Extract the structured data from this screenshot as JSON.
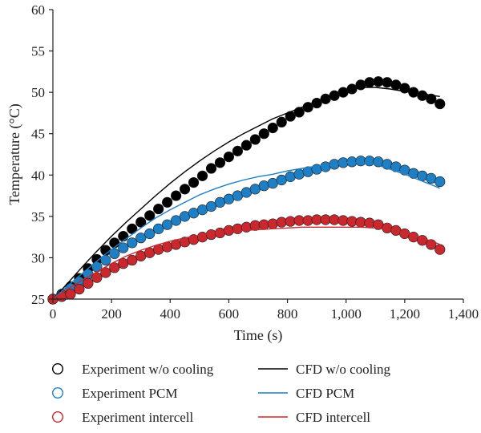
{
  "chart_data": {
    "type": "scatter",
    "title": "",
    "xlabel": "Time (s)",
    "ylabel": "Temperature (°C)",
    "xlim": [
      0,
      1400
    ],
    "ylim": [
      25,
      60
    ],
    "xticks": [
      0,
      200,
      400,
      600,
      800,
      1000,
      1200,
      1400
    ],
    "xtick_labels": [
      "0",
      "200",
      "400",
      "600",
      "800",
      "1,000",
      "1,200",
      "1,400"
    ],
    "yticks": [
      25,
      30,
      35,
      40,
      45,
      50,
      55,
      60
    ],
    "ytick_labels": [
      "25",
      "30",
      "35",
      "40",
      "45",
      "50",
      "55",
      "60"
    ],
    "grid": false,
    "legend_position": "bottom",
    "series": [
      {
        "name": "Experiment w/o cooling",
        "kind": "markers",
        "color": "#000000",
        "x": [
          0,
          30,
          60,
          90,
          120,
          150,
          180,
          210,
          240,
          270,
          300,
          330,
          360,
          390,
          420,
          450,
          480,
          510,
          540,
          570,
          600,
          630,
          660,
          690,
          720,
          750,
          780,
          810,
          840,
          870,
          900,
          930,
          960,
          990,
          1020,
          1050,
          1080,
          1110,
          1140,
          1170,
          1200,
          1230,
          1260,
          1290,
          1320
        ],
        "y": [
          25.0,
          25.6,
          26.5,
          27.5,
          28.7,
          29.8,
          30.9,
          31.8,
          32.6,
          33.5,
          34.3,
          35.1,
          35.9,
          36.7,
          37.5,
          38.3,
          39.1,
          39.9,
          40.8,
          41.5,
          42.2,
          42.9,
          43.6,
          44.3,
          45.0,
          45.7,
          46.4,
          47.1,
          47.6,
          48.2,
          48.7,
          49.2,
          49.6,
          50.0,
          50.4,
          50.9,
          51.2,
          51.3,
          51.2,
          50.9,
          50.5,
          50.0,
          49.6,
          49.2,
          48.6
        ]
      },
      {
        "name": "Experiment PCM",
        "kind": "markers",
        "color": "#1f7fc4",
        "x": [
          0,
          30,
          60,
          90,
          120,
          150,
          180,
          210,
          240,
          270,
          300,
          330,
          360,
          390,
          420,
          450,
          480,
          510,
          540,
          570,
          600,
          630,
          660,
          690,
          720,
          750,
          780,
          810,
          840,
          870,
          900,
          930,
          960,
          990,
          1020,
          1050,
          1080,
          1110,
          1140,
          1170,
          1200,
          1230,
          1260,
          1290,
          1320
        ],
        "y": [
          25.0,
          25.5,
          26.3,
          27.1,
          28.0,
          28.9,
          29.7,
          30.5,
          31.2,
          31.8,
          32.4,
          32.9,
          33.5,
          34.0,
          34.5,
          35.0,
          35.4,
          35.8,
          36.2,
          36.7,
          37.1,
          37.5,
          37.9,
          38.3,
          38.7,
          39.0,
          39.4,
          39.8,
          40.1,
          40.4,
          40.7,
          41.0,
          41.3,
          41.5,
          41.6,
          41.7,
          41.7,
          41.6,
          41.3,
          41.0,
          40.6,
          40.2,
          39.9,
          39.6,
          39.2
        ]
      },
      {
        "name": "Experiment intercell",
        "kind": "markers",
        "color": "#c8282e",
        "x": [
          0,
          30,
          60,
          90,
          120,
          150,
          180,
          210,
          240,
          270,
          300,
          330,
          360,
          390,
          420,
          450,
          480,
          510,
          540,
          570,
          600,
          630,
          660,
          690,
          720,
          750,
          780,
          810,
          840,
          870,
          900,
          930,
          960,
          990,
          1020,
          1050,
          1080,
          1110,
          1140,
          1170,
          1200,
          1230,
          1260,
          1290,
          1320
        ],
        "y": [
          25.0,
          25.3,
          25.6,
          26.2,
          26.9,
          27.6,
          28.2,
          28.8,
          29.3,
          29.7,
          30.2,
          30.6,
          31.0,
          31.3,
          31.6,
          31.9,
          32.2,
          32.5,
          32.8,
          33.0,
          33.3,
          33.5,
          33.7,
          33.9,
          34.0,
          34.1,
          34.3,
          34.4,
          34.5,
          34.5,
          34.6,
          34.6,
          34.6,
          34.5,
          34.4,
          34.3,
          34.2,
          34.0,
          33.6,
          33.3,
          32.9,
          32.5,
          32.1,
          31.6,
          31.0
        ]
      },
      {
        "name": "CFD w/o cooling",
        "kind": "line",
        "color": "#000000",
        "x": [
          0,
          50,
          100,
          150,
          200,
          250,
          300,
          350,
          400,
          450,
          500,
          550,
          600,
          650,
          700,
          750,
          800,
          850,
          900,
          950,
          1000,
          1050,
          1100,
          1150,
          1200,
          1250,
          1300,
          1320
        ],
        "y": [
          25.0,
          26.9,
          28.9,
          30.8,
          32.6,
          34.3,
          35.9,
          37.5,
          39.0,
          40.4,
          41.7,
          42.9,
          44.0,
          45.0,
          45.9,
          46.8,
          47.5,
          48.2,
          48.9,
          49.6,
          50.2,
          50.6,
          50.6,
          50.4,
          50.1,
          49.9,
          49.6,
          49.5
        ]
      },
      {
        "name": "CFD PCM",
        "kind": "line",
        "color": "#1f7fc4",
        "x": [
          0,
          50,
          100,
          150,
          200,
          250,
          300,
          350,
          400,
          450,
          500,
          550,
          600,
          650,
          700,
          750,
          800,
          850,
          900,
          950,
          1000,
          1050,
          1100,
          1150,
          1200,
          1250,
          1300,
          1320
        ],
        "y": [
          25.0,
          26.6,
          28.1,
          29.6,
          31.0,
          32.3,
          33.6,
          34.8,
          35.8,
          36.7,
          37.6,
          38.3,
          38.9,
          39.4,
          39.8,
          40.1,
          40.5,
          40.8,
          41.1,
          41.3,
          41.5,
          41.5,
          41.3,
          40.7,
          40.1,
          39.4,
          38.7,
          38.4
        ]
      },
      {
        "name": "CFD intercell",
        "kind": "line",
        "color": "#c8282e",
        "x": [
          0,
          50,
          100,
          150,
          200,
          250,
          300,
          350,
          400,
          450,
          500,
          550,
          600,
          650,
          700,
          750,
          800,
          850,
          900,
          950,
          1000,
          1050,
          1100,
          1150,
          1200,
          1250,
          1300,
          1320
        ],
        "y": [
          25.0,
          26.2,
          27.3,
          28.3,
          29.3,
          30.2,
          30.9,
          31.5,
          32.0,
          32.4,
          32.7,
          33.0,
          33.2,
          33.3,
          33.4,
          33.5,
          33.6,
          33.7,
          33.7,
          33.7,
          33.7,
          33.7,
          33.6,
          33.4,
          33.0,
          32.5,
          31.9,
          31.6
        ]
      }
    ]
  },
  "legend": {
    "items": [
      {
        "label": "Experiment w/o cooling",
        "kind": "markers",
        "color": "#000000"
      },
      {
        "label": "CFD w/o cooling",
        "kind": "line",
        "color": "#000000"
      },
      {
        "label": "Experiment PCM",
        "kind": "markers",
        "color": "#1f7fc4"
      },
      {
        "label": "CFD PCM",
        "kind": "line",
        "color": "#1f7fc4"
      },
      {
        "label": "Experiment intercell",
        "kind": "markers",
        "color": "#c8282e"
      },
      {
        "label": "CFD intercell",
        "kind": "line",
        "color": "#c8282e"
      }
    ]
  }
}
